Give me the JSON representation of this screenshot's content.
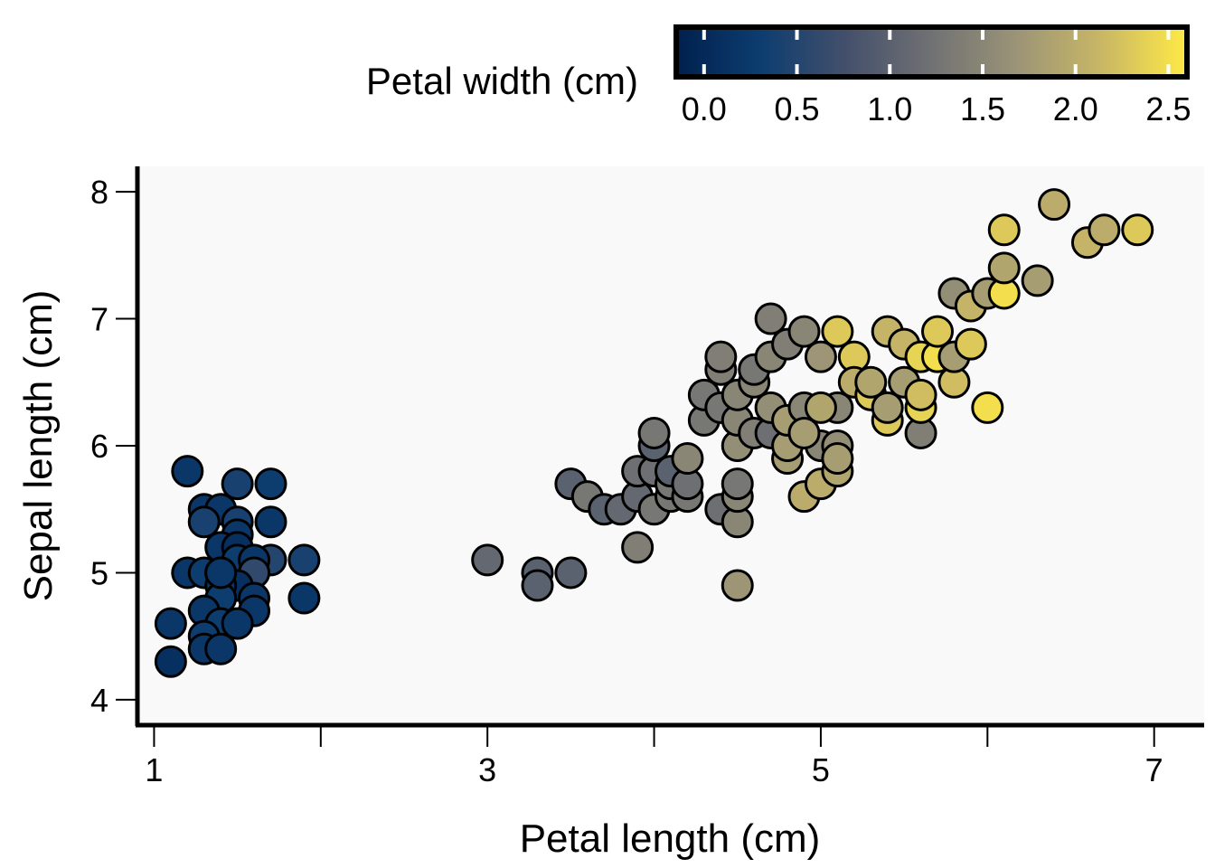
{
  "chart_data": {
    "type": "scatter",
    "title": "",
    "xlabel": "Petal length (cm)",
    "ylabel": "Sepal length (cm)",
    "xlim": [
      0.9,
      7.3
    ],
    "ylim": [
      3.8,
      8.2
    ],
    "x_ticks": [
      1,
      2,
      3,
      4,
      5,
      6,
      7
    ],
    "x_tick_labels": [
      "1",
      "",
      "3",
      "",
      "5",
      "",
      "7"
    ],
    "y_ticks": [
      4,
      5,
      6,
      7,
      8
    ],
    "y_tick_labels": [
      "4",
      "5",
      "6",
      "7",
      "8"
    ],
    "grid": false,
    "plot_background": "#f9f9f9",
    "point_outline": "#000000",
    "colorbar": {
      "title": "Petal width (cm)",
      "range": [
        -0.15,
        2.6
      ],
      "ticks": [
        0.0,
        0.5,
        1.0,
        1.5,
        2.0,
        2.5
      ],
      "tick_labels": [
        "0.0",
        "0.5",
        "1.0",
        "1.5",
        "2.0",
        "2.5"
      ],
      "placement": "top-right",
      "colormap": "cividis",
      "stops": [
        "#00204d",
        "#0d3d70",
        "#44506b",
        "#707173",
        "#9b9477",
        "#c9b765",
        "#ffea46"
      ]
    },
    "points": [
      [
        1.2,
        5.8,
        0.2
      ],
      [
        1.5,
        5.7,
        0.4
      ],
      [
        1.7,
        5.7,
        0.3
      ],
      [
        1.3,
        5.5,
        0.2
      ],
      [
        1.4,
        5.5,
        0.2
      ],
      [
        1.3,
        5.4,
        0.4
      ],
      [
        1.7,
        5.4,
        0.2
      ],
      [
        1.5,
        5.4,
        0.4
      ],
      [
        1.5,
        5.3,
        0.2
      ],
      [
        1.4,
        5.2,
        0.2
      ],
      [
        1.5,
        5.2,
        0.1
      ],
      [
        1.5,
        5.1,
        0.3
      ],
      [
        1.7,
        5.1,
        0.5
      ],
      [
        1.6,
        5.1,
        0.2
      ],
      [
        1.9,
        5.1,
        0.4
      ],
      [
        1.2,
        5.0,
        0.2
      ],
      [
        1.3,
        5.0,
        0.3
      ],
      [
        1.4,
        5.0,
        0.2
      ],
      [
        1.6,
        5.0,
        0.6
      ],
      [
        1.5,
        4.9,
        0.1
      ],
      [
        1.4,
        4.9,
        0.2
      ],
      [
        1.6,
        4.8,
        0.2
      ],
      [
        1.9,
        4.8,
        0.2
      ],
      [
        1.4,
        4.8,
        0.3
      ],
      [
        1.6,
        4.7,
        0.2
      ],
      [
        1.3,
        4.7,
        0.2
      ],
      [
        1.1,
        4.6,
        0.2
      ],
      [
        1.4,
        4.6,
        0.3
      ],
      [
        1.5,
        4.6,
        0.2
      ],
      [
        1.3,
        4.5,
        0.3
      ],
      [
        1.3,
        4.4,
        0.2
      ],
      [
        1.4,
        4.4,
        0.2
      ],
      [
        1.1,
        4.3,
        0.1
      ],
      [
        1.4,
        5.0,
        0.2
      ],
      [
        3.0,
        5.1,
        1.1
      ],
      [
        3.3,
        5.0,
        1.0
      ],
      [
        3.3,
        4.9,
        1.0
      ],
      [
        3.5,
        5.0,
        1.0
      ],
      [
        3.5,
        5.7,
        1.0
      ],
      [
        3.6,
        5.6,
        1.3
      ],
      [
        3.7,
        5.5,
        1.0
      ],
      [
        3.8,
        5.5,
        1.1
      ],
      [
        3.9,
        5.2,
        1.4
      ],
      [
        3.9,
        5.6,
        1.1
      ],
      [
        3.9,
        5.8,
        1.2
      ],
      [
        4.0,
        5.5,
        1.3
      ],
      [
        4.0,
        5.8,
        1.2
      ],
      [
        4.0,
        6.0,
        1.0
      ],
      [
        4.0,
        6.1,
        1.3
      ],
      [
        4.1,
        5.6,
        1.3
      ],
      [
        4.1,
        5.7,
        1.3
      ],
      [
        4.1,
        5.8,
        1.0
      ],
      [
        4.2,
        5.6,
        1.3
      ],
      [
        4.2,
        5.7,
        1.2
      ],
      [
        4.2,
        5.9,
        1.5
      ],
      [
        4.3,
        6.2,
        1.3
      ],
      [
        4.3,
        6.4,
        1.3
      ],
      [
        4.4,
        6.3,
        1.3
      ],
      [
        4.4,
        6.6,
        1.4
      ],
      [
        4.4,
        6.7,
        1.4
      ],
      [
        4.4,
        5.5,
        1.2
      ],
      [
        4.5,
        5.4,
        1.5
      ],
      [
        4.5,
        5.6,
        1.5
      ],
      [
        4.5,
        5.7,
        1.3
      ],
      [
        4.5,
        6.0,
        1.6
      ],
      [
        4.5,
        6.2,
        1.5
      ],
      [
        4.5,
        6.4,
        1.5
      ],
      [
        4.5,
        4.9,
        1.7
      ],
      [
        4.6,
        6.1,
        1.4
      ],
      [
        4.6,
        6.5,
        1.5
      ],
      [
        4.6,
        6.6,
        1.3
      ],
      [
        4.7,
        6.1,
        1.2
      ],
      [
        4.7,
        6.7,
        1.5
      ],
      [
        4.7,
        7.0,
        1.4
      ],
      [
        4.7,
        6.3,
        1.6
      ],
      [
        4.8,
        6.8,
        1.4
      ],
      [
        4.8,
        5.9,
        1.8
      ],
      [
        4.8,
        6.0,
        1.8
      ],
      [
        4.8,
        6.2,
        1.8
      ],
      [
        4.9,
        6.9,
        1.5
      ],
      [
        4.9,
        6.3,
        1.5
      ],
      [
        4.9,
        5.6,
        2.0
      ],
      [
        5.0,
        6.7,
        1.7
      ],
      [
        5.0,
        6.0,
        1.5
      ],
      [
        5.0,
        5.7,
        2.0
      ],
      [
        5.1,
        6.0,
        1.6
      ],
      [
        5.1,
        6.3,
        1.5
      ],
      [
        5.1,
        5.8,
        1.9
      ],
      [
        5.1,
        5.9,
        1.8
      ],
      [
        5.1,
        6.9,
        2.3
      ],
      [
        5.2,
        6.7,
        2.3
      ],
      [
        5.2,
        6.5,
        2.0
      ],
      [
        5.3,
        6.4,
        2.3
      ],
      [
        5.4,
        6.2,
        2.3
      ],
      [
        5.4,
        6.9,
        2.1
      ],
      [
        5.5,
        6.8,
        2.1
      ],
      [
        5.5,
        6.5,
        1.8
      ],
      [
        5.6,
        6.1,
        1.4
      ],
      [
        5.6,
        6.3,
        2.4
      ],
      [
        5.6,
        6.4,
        2.2
      ],
      [
        5.6,
        6.7,
        2.4
      ],
      [
        5.7,
        6.7,
        2.5
      ],
      [
        5.7,
        6.9,
        2.3
      ],
      [
        5.8,
        6.5,
        2.2
      ],
      [
        5.8,
        6.7,
        1.8
      ],
      [
        5.8,
        7.2,
        1.6
      ],
      [
        5.9,
        7.1,
        2.1
      ],
      [
        5.9,
        6.8,
        2.3
      ],
      [
        6.0,
        6.3,
        2.5
      ],
      [
        6.0,
        7.2,
        1.8
      ],
      [
        6.1,
        7.2,
        2.5
      ],
      [
        6.1,
        7.4,
        1.9
      ],
      [
        6.1,
        7.7,
        2.3
      ],
      [
        6.3,
        7.3,
        1.8
      ],
      [
        6.4,
        7.9,
        2.0
      ],
      [
        6.6,
        7.6,
        2.1
      ],
      [
        6.7,
        7.7,
        2.0
      ],
      [
        6.9,
        7.7,
        2.3
      ],
      [
        5.4,
        6.3,
        1.8
      ],
      [
        5.3,
        6.5,
        1.9
      ],
      [
        5.0,
        6.3,
        1.9
      ],
      [
        4.9,
        6.1,
        1.8
      ]
    ]
  }
}
